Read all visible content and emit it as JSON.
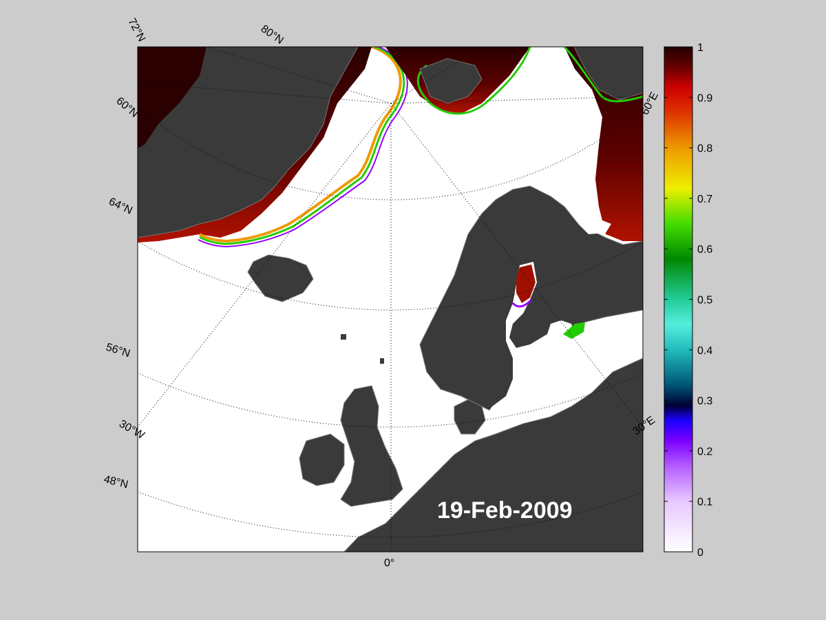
{
  "map": {
    "date": "19-Feb-2009",
    "lat_labels": [
      "72°N",
      "80°N",
      "60°N",
      "64°N",
      "56°N",
      "48°N"
    ],
    "lon_labels": [
      "30°W",
      "0°",
      "30°E",
      "60°E"
    ],
    "colors": {
      "figure_background": "#cccccc",
      "open_water": "#ffffff",
      "land": "#3a3a3a",
      "land_edge": "#777777",
      "ice_dense": "#2a0000",
      "ice_mid": "#a01000",
      "ice_edge_green": "#22cc00",
      "ice_edge_purple": "#9900ff"
    }
  },
  "colorbar": {
    "ticks": [
      "1",
      "0.9",
      "0.8",
      "0.7",
      "0.6",
      "0.5",
      "0.4",
      "0.3",
      "0.2",
      "0.1",
      "0"
    ],
    "range": [
      0,
      1
    ]
  }
}
